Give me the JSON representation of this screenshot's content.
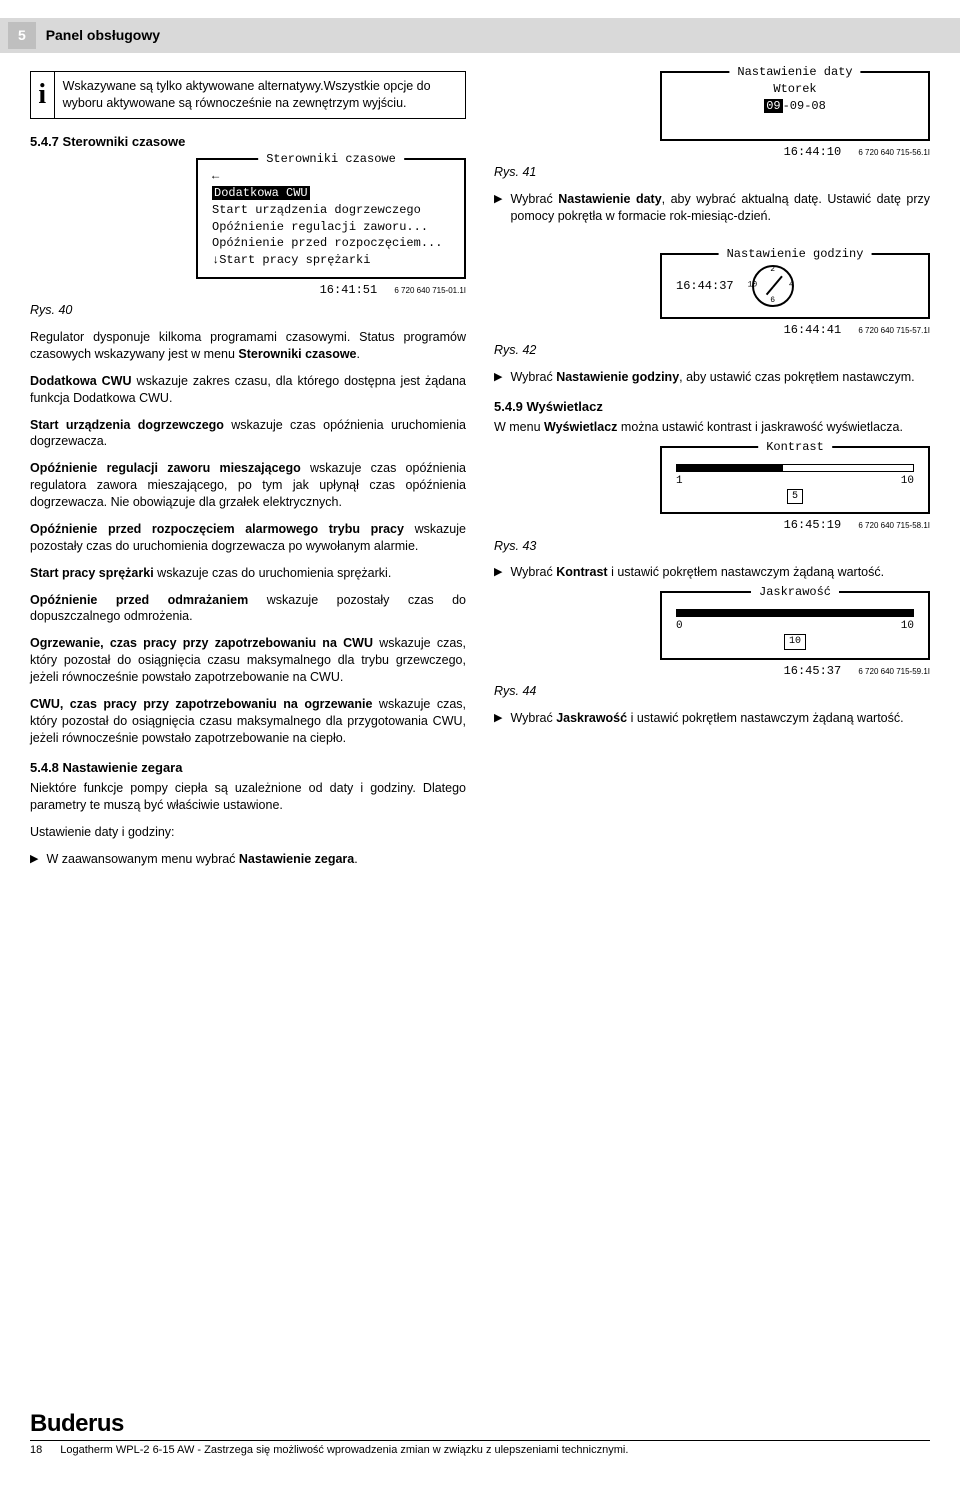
{
  "header": {
    "page_num": "5",
    "title": "Panel obsługowy"
  },
  "info": {
    "text": "Wskazywane są tylko aktywowane alternatywy.Wszystkie opcje do wyboru aktywowane są równocześnie na zewnętrzym wyjściu."
  },
  "sec_547": "5.4.7   Sterowniki czasowe",
  "lcd40": {
    "title": "Sterowniki czasowe",
    "row_hl": "Dodatkowa CWU",
    "rows": [
      "Start urządzenia dogrzewczego",
      "Opóźnienie regulacji zaworu...",
      "Opóźnienie przed rozpoczęciem...",
      "Start pracy sprężarki"
    ],
    "time": "16:41:51",
    "code": "6 720 640 715-01.1I"
  },
  "cap40": "Rys. 40",
  "p40a": "Regulator dysponuje kilkoma programami czasowymi. Status programów czasowych wskazywany jest w menu ",
  "p40a_b": "Sterowniki czasowe",
  "p40a_end": ".",
  "p_dodcwu_b": "Dodatkowa CWU",
  "p_dodcwu": " wskazuje zakres czasu, dla którego dostępna jest żądana funkcja Dodatkowa CWU.",
  "p_start_b": "Start urządzenia dogrzewczego",
  "p_start": " wskazuje czas opóźnienia uruchomienia dogrzewacza.",
  "p_opozreg_b": "Opóźnienie regulacji zaworu mieszającego",
  "p_opozreg": " wskazuje czas opóźnienia regulatora zawora mieszającego, po tym jak upłynął czas opóźnienia dogrzewacza. Nie obowiązuje dla grzałek elektrycznych.",
  "p_oprzed_b": "Opóźnienie przed rozpoczęciem alarmowego trybu pracy",
  "p_oprzed": " wskazuje pozostały czas do uruchomienia dogrzewacza po wywołanym alarmie.",
  "p_startspr_b": "Start pracy sprężarki",
  "p_startspr": " wskazuje czas do uruchomienia sprężarki.",
  "p_opodm_b": "Opóźnienie przed odmrażaniem",
  "p_opodm": " wskazuje pozostały czas do dopuszczalnego odmrożenia.",
  "p_ogrz_b": "Ogrzewanie, czas pracy przy zapotrzebowaniu na CWU",
  "p_ogrz": " wskazuje czas, który pozostał do osiągnięcia czasu maksymalnego dla trybu grzewczego, jeżeli równocześnie powstało zapotrzebowanie na CWU.",
  "p_cwu_b": "CWU, czas pracy przy zapotrzebowaniu na ogrzewanie",
  "p_cwu": " wskazuje czas, który pozostał do osiągnięcia czasu maksymalnego dla przygotowania CWU, jeżeli równocześnie powstało zapotrzebowanie na ciepło.",
  "sec_548": "5.4.8   Nastawienie zegara",
  "p548": "Niektóre funkcje pompy ciepła są uzależnione od daty i godziny. Dlatego parametry te muszą być właściwie ustawione.",
  "p548b": "Ustawienie daty i godziny:",
  "bul548": "W zaawansowanym menu wybrać ",
  "bul548_b": "Nastawienie zegara",
  "bul548_end": ".",
  "lcd41": {
    "title": "Nastawienie daty",
    "day": "Wtorek",
    "date_hl": "09",
    "date_rest": "-09-08",
    "time": "16:44:10",
    "code": "6 720 640 715-56.1I"
  },
  "cap41": "Rys. 41",
  "bul41a": "Wybrać ",
  "bul41b": "Nastawienie daty",
  "bul41c": ", aby wybrać aktualną datę. Ustawić datę przy pomocy pokrętła w formacie rok-miesiąc-dzień.",
  "lcd42": {
    "title": "Nastawienie godziny",
    "time_hl": "16",
    "time_rest": ":44:37",
    "time": "16:44:41",
    "code": "6 720 640 715-57.1I",
    "ticks": {
      "t2": "2",
      "t4": "4",
      "t6": "6",
      "t10": "10"
    }
  },
  "cap42": "Rys. 42",
  "bul42a": "Wybrać ",
  "bul42b": "Nastawienie godziny",
  "bul42c": ", aby ustawić czas pokrętłem nastawczym.",
  "sec_549": "5.4.9   Wyświetlacz",
  "p549a": "W menu ",
  "p549b": "Wyświetlacz",
  "p549c": " można ustawić kontrast i jaskrawość wyświetlacza.",
  "lcd43": {
    "title": "Kontrast",
    "min": "1",
    "max": "10",
    "val": "5",
    "fill_pct": 45,
    "time": "16:45:19",
    "code": "6 720 640 715-58.1I"
  },
  "cap43": "Rys. 43",
  "bul43a": " Wybrać ",
  "bul43b": "Kontrast",
  "bul43c": " i ustawić pokrętłem nastawczym żądaną wartość.",
  "lcd44": {
    "title": "Jaskrawość",
    "min": "0",
    "max": "10",
    "val": "10",
    "fill_pct": 100,
    "time": "16:45:37",
    "code": "6 720 640 715-59.1I"
  },
  "cap44": "Rys. 44",
  "bul44a": "Wybrać ",
  "bul44b": "Jaskrawość",
  "bul44c": " i ustawić pokrętłem nastawczym żądaną wartość.",
  "footer": {
    "brand": "Buderus",
    "page": "18",
    "text": "Logatherm WPL-2 6-15 AW - Zastrzega się możliwość wprowadzenia zmian w związku z ulepszeniami technicznymi."
  }
}
